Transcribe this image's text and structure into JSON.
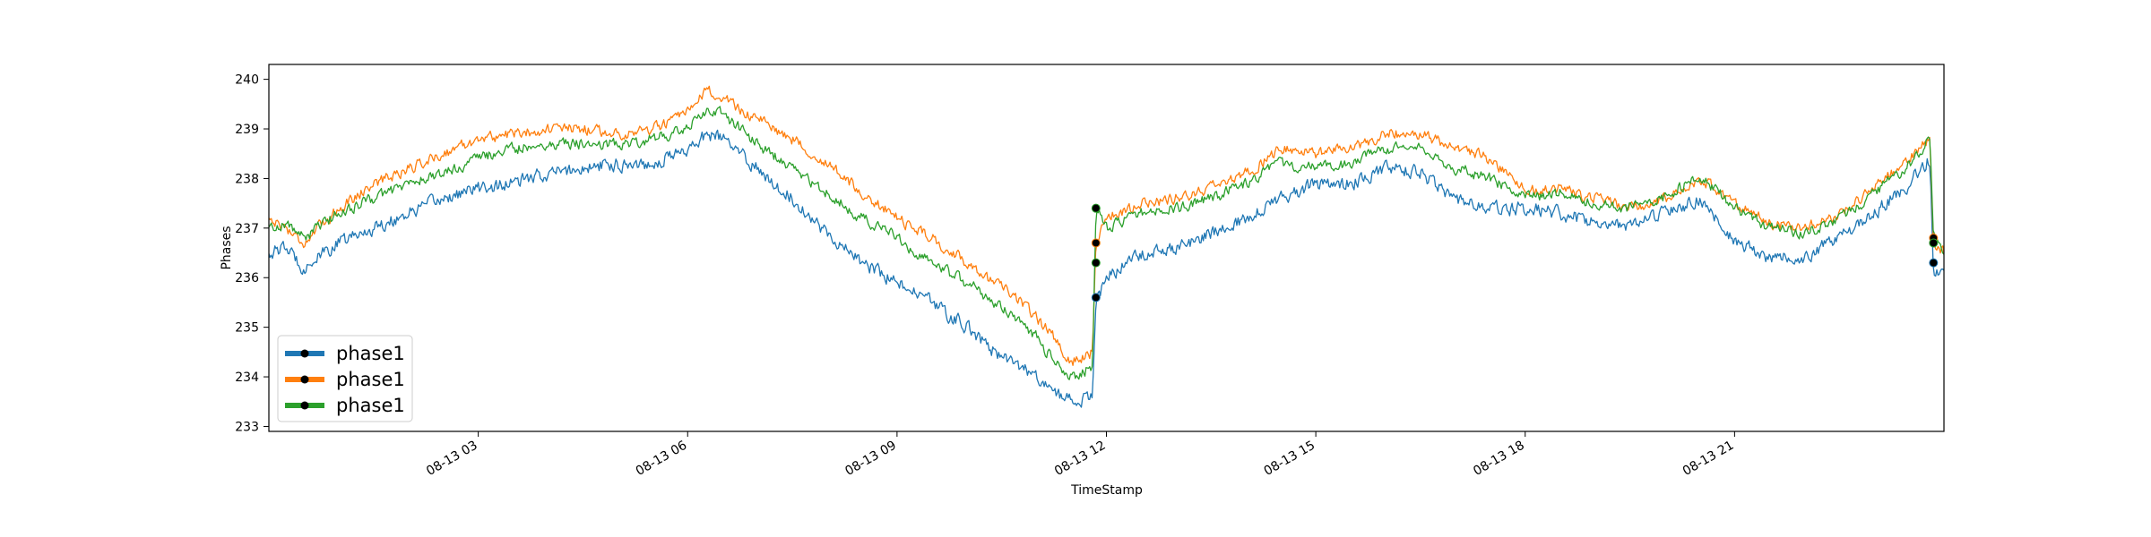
{
  "chart_data": {
    "type": "line",
    "title": "",
    "xlabel": "TimeStamp",
    "ylabel": "Phases",
    "xlim": [
      0,
      24
    ],
    "ylim": [
      232.9,
      240.3
    ],
    "yticks": [
      233,
      234,
      235,
      236,
      237,
      238,
      239,
      240
    ],
    "xticks": [
      {
        "value": 3,
        "label": "08-13 03"
      },
      {
        "value": 6,
        "label": "08-13 06"
      },
      {
        "value": 9,
        "label": "08-13 09"
      },
      {
        "value": 12,
        "label": "08-13 12"
      },
      {
        "value": 15,
        "label": "08-13 15"
      },
      {
        "value": 18,
        "label": "08-13 18"
      },
      {
        "value": 21,
        "label": "08-13 21"
      }
    ],
    "legend": {
      "location": "lower-left",
      "entries": [
        "phase1",
        "phase1",
        "phase1"
      ]
    },
    "x": [
      0,
      0.25,
      0.5,
      1,
      1.5,
      2,
      2.5,
      3,
      3.5,
      4,
      4.5,
      5,
      5.5,
      6,
      6.3,
      6.5,
      7,
      7.5,
      8,
      8.5,
      9,
      9.5,
      10,
      10.5,
      11,
      11.25,
      11.5,
      11.8,
      11.85,
      12,
      12.5,
      13,
      13.5,
      14,
      14.5,
      15,
      15.5,
      16,
      16.5,
      17,
      17.5,
      18,
      18.5,
      19,
      19.5,
      20,
      20.5,
      21,
      21.5,
      22,
      22.5,
      23,
      23.5,
      23.8,
      23.85,
      24
    ],
    "series": [
      {
        "name": "phase1",
        "color": "#1f77b4",
        "noise": 0.22,
        "values": [
          236.5,
          236.6,
          236.2,
          236.7,
          237.0,
          237.3,
          237.6,
          237.8,
          237.9,
          238.1,
          238.2,
          238.3,
          238.3,
          238.6,
          238.9,
          238.8,
          238.2,
          237.6,
          236.9,
          236.3,
          235.9,
          235.5,
          235.0,
          234.4,
          234.0,
          233.7,
          233.5,
          233.6,
          235.4,
          236.0,
          236.5,
          236.6,
          236.9,
          237.2,
          237.6,
          237.9,
          237.9,
          238.2,
          238.1,
          237.6,
          237.4,
          237.4,
          237.3,
          237.1,
          237.0,
          237.3,
          237.6,
          236.7,
          236.4,
          236.4,
          236.8,
          237.3,
          237.9,
          238.4,
          236.2,
          236.0
        ],
        "markers": [
          {
            "x": 11.85,
            "y": 235.6
          },
          {
            "x": 23.85,
            "y": 236.3
          }
        ]
      },
      {
        "name": "phase1",
        "color": "#ff7f0e",
        "noise": 0.18,
        "values": [
          237.2,
          237.0,
          236.7,
          237.4,
          237.9,
          238.2,
          238.5,
          238.8,
          238.9,
          239.0,
          239.0,
          238.9,
          239.0,
          239.3,
          239.8,
          239.6,
          239.2,
          238.8,
          238.3,
          237.7,
          237.2,
          236.8,
          236.3,
          235.8,
          235.2,
          234.8,
          234.3,
          234.5,
          236.7,
          237.2,
          237.5,
          237.6,
          237.8,
          238.1,
          238.6,
          238.5,
          238.6,
          238.9,
          238.9,
          238.6,
          238.4,
          237.8,
          237.8,
          237.6,
          237.4,
          237.6,
          238.0,
          237.5,
          237.1,
          237.0,
          237.3,
          237.8,
          238.4,
          238.8,
          236.7,
          236.5
        ],
        "markers": [
          {
            "x": 11.85,
            "y": 236.7
          },
          {
            "x": 23.85,
            "y": 236.8
          }
        ]
      },
      {
        "name": "phase1",
        "color": "#2ca02c",
        "noise": 0.18,
        "values": [
          237.0,
          237.1,
          236.8,
          237.3,
          237.6,
          237.9,
          238.1,
          238.4,
          238.6,
          238.7,
          238.7,
          238.7,
          238.8,
          239.0,
          239.4,
          239.3,
          238.7,
          238.2,
          237.7,
          237.2,
          236.8,
          236.3,
          235.9,
          235.4,
          234.8,
          234.3,
          234.0,
          234.2,
          237.4,
          237.0,
          237.3,
          237.4,
          237.6,
          237.9,
          238.3,
          238.2,
          238.3,
          238.6,
          238.6,
          238.2,
          238.0,
          237.6,
          237.7,
          237.5,
          237.4,
          237.6,
          238.1,
          237.4,
          237.0,
          236.9,
          237.2,
          237.7,
          238.3,
          238.8,
          236.9,
          236.6
        ],
        "markers": [
          {
            "x": 11.85,
            "y": 237.4
          },
          {
            "x": 11.85,
            "y": 236.3
          },
          {
            "x": 23.85,
            "y": 236.7
          }
        ]
      }
    ]
  }
}
